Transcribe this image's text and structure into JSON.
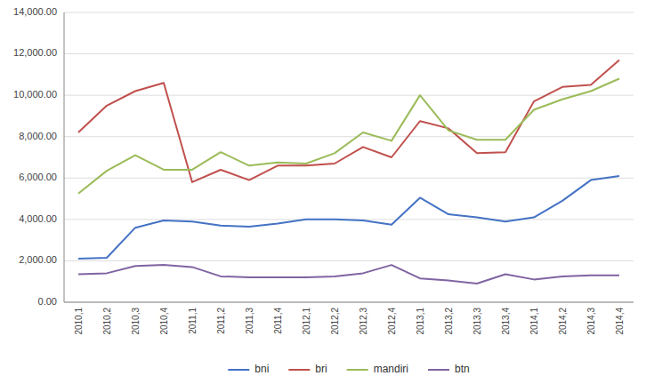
{
  "chart_data": {
    "type": "line",
    "categories": [
      "2010,1",
      "2010,2",
      "2010,3",
      "2010,4",
      "2011,1",
      "2011,2",
      "2011,3",
      "2011,4",
      "2012,1",
      "2012,2",
      "2012,3",
      "2012,4",
      "2013,1",
      "2013,2",
      "2013,3",
      "2013,4",
      "2014,1",
      "2014,2",
      "2014,3",
      "2014,4"
    ],
    "series": [
      {
        "name": "bni",
        "color": "#4472C4",
        "values": [
          2100,
          2150,
          3600,
          3950,
          3900,
          3700,
          3650,
          3800,
          4000,
          4000,
          3950,
          3750,
          5050,
          4250,
          4100,
          3900,
          4100,
          4900,
          5900,
          6100
        ]
      },
      {
        "name": "bri",
        "color": "#C0504D",
        "values": [
          8200,
          9500,
          10200,
          10600,
          5800,
          6400,
          5900,
          6600,
          6600,
          6700,
          7500,
          7000,
          8750,
          8400,
          7200,
          7250,
          9700,
          10400,
          10500,
          11700
        ]
      },
      {
        "name": "mandiri",
        "color": "#9BBB59",
        "values": [
          5250,
          6350,
          7100,
          6400,
          6400,
          7250,
          6600,
          6750,
          6700,
          7200,
          8200,
          7800,
          10000,
          8300,
          7850,
          7850,
          9300,
          9800,
          10200,
          10800
        ]
      },
      {
        "name": "btn",
        "color": "#8064A2",
        "values": [
          1350,
          1400,
          1750,
          1800,
          1700,
          1250,
          1200,
          1200,
          1200,
          1250,
          1400,
          1800,
          1150,
          1050,
          900,
          1350,
          1100,
          1250,
          1300,
          1300
        ]
      }
    ],
    "ylim": [
      0,
      14000
    ],
    "yticks": [
      {
        "value": 0,
        "label": "0.00"
      },
      {
        "value": 2000,
        "label": "2,000.00"
      },
      {
        "value": 4000,
        "label": "4,000.00"
      },
      {
        "value": 6000,
        "label": "6,000.00"
      },
      {
        "value": 8000,
        "label": "8,000.00"
      },
      {
        "value": 10000,
        "label": "10,000.00"
      },
      {
        "value": 12000,
        "label": "12,000.00"
      },
      {
        "value": 14000,
        "label": "14,000.00"
      }
    ],
    "grid": true,
    "legend": "bottom"
  }
}
